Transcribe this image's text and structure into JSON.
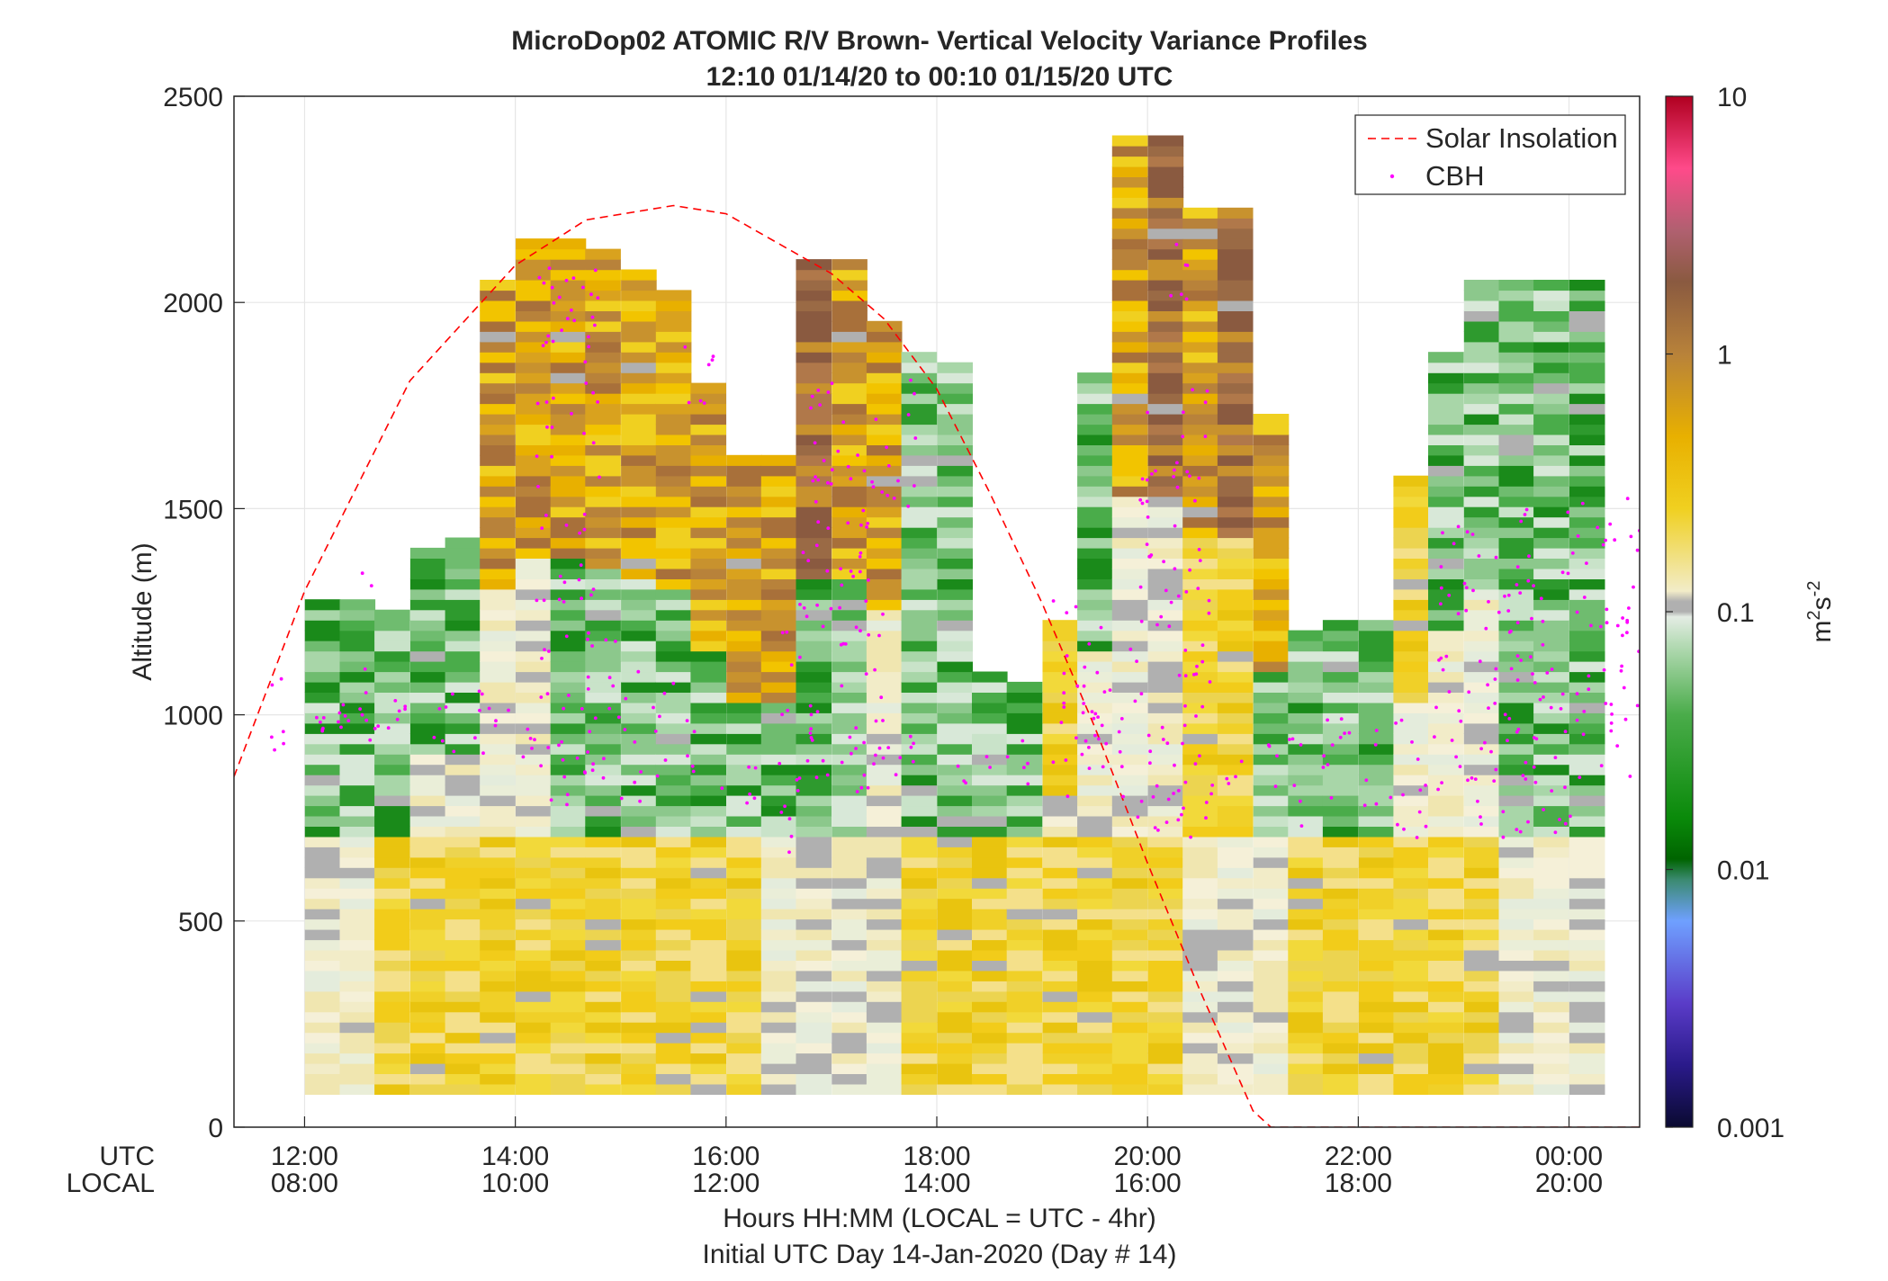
{
  "chart_data": {
    "type": "heatmap",
    "title": "MicroDop02 ATOMIC R/V Brown- Vertical Velocity Variance Profiles",
    "subtitle": "12:10 01/14/20 to 00:10 01/15/20  UTC",
    "ylabel": "Altitude (m)",
    "ylim": [
      0,
      2500
    ],
    "yticks": [
      "0",
      "500",
      "1000",
      "1500",
      "2000",
      "2500"
    ],
    "xlim_hours_utc": [
      11.33,
      24.67
    ],
    "xticks_utc": [
      "12:00",
      "14:00",
      "16:00",
      "18:00",
      "20:00",
      "22:00",
      "00:00"
    ],
    "xticks_local": [
      "08:00",
      "10:00",
      "12:00",
      "14:00",
      "16:00",
      "18:00",
      "20:00"
    ],
    "x_row_label_utc": "UTC",
    "x_row_label_local": "LOCAL",
    "xlabel": "Hours HH:MM  (LOCAL = UTC - 4hr)",
    "xlabel2": "Initial UTC Day 14-Jan-2020 (Day # 14)",
    "colorbar": {
      "label_base": "m",
      "label_sup1": "2",
      "label_mid": "s",
      "label_sup2": "-2",
      "scale": "log",
      "range": [
        0.001,
        10
      ],
      "ticks": [
        "0.001",
        "0.01",
        "0.1",
        "1",
        "10"
      ]
    },
    "legend": {
      "placement": "top-right",
      "entries": [
        "Solar Insolation",
        "CBH"
      ]
    },
    "colors": {
      "solar": "#ff0000",
      "cbh": "#ff00ff"
    },
    "profiles": [
      {
        "t": 12.17,
        "top": 1280,
        "low": "pale",
        "mid": "green",
        "up": "green"
      },
      {
        "t": 12.5,
        "top": 1280,
        "low": "pale",
        "mid": "green",
        "up": "green"
      },
      {
        "t": 12.83,
        "top": 1250,
        "low": "yellow",
        "mid": "green",
        "up": "green"
      },
      {
        "t": 13.17,
        "top": 1390,
        "low": "yellow",
        "mid": "pale",
        "up": "green"
      },
      {
        "t": 13.5,
        "top": 1410,
        "low": "yellow",
        "mid": "pale",
        "up": "green"
      },
      {
        "t": 13.83,
        "top": 2040,
        "low": "yellow",
        "mid": "pale",
        "up": "gold"
      },
      {
        "t": 14.17,
        "top": 2150,
        "low": "yellow",
        "mid": "pale",
        "up": "gold"
      },
      {
        "t": 14.5,
        "top": 2150,
        "low": "yellow",
        "mid": "green",
        "up": "gold"
      },
      {
        "t": 14.83,
        "top": 2130,
        "low": "yellow",
        "mid": "green",
        "up": "gold"
      },
      {
        "t": 15.17,
        "top": 2070,
        "low": "yellow",
        "mid": "green",
        "up": "gold"
      },
      {
        "t": 15.5,
        "top": 2030,
        "low": "yellow",
        "mid": "green",
        "up": "gold"
      },
      {
        "t": 15.83,
        "top": 1790,
        "low": "yellow",
        "mid": "green",
        "up": "gold"
      },
      {
        "t": 16.17,
        "top": 1610,
        "low": "yellow",
        "mid": "green",
        "up": "gold"
      },
      {
        "t": 16.5,
        "top": 1610,
        "low": "pale",
        "mid": "green",
        "up": "gold"
      },
      {
        "t": 16.83,
        "top": 2090,
        "low": "pale",
        "mid": "green",
        "up": "brown"
      },
      {
        "t": 17.17,
        "top": 2090,
        "low": "pale",
        "mid": "green",
        "up": "gold"
      },
      {
        "t": 17.5,
        "top": 1950,
        "low": "pale",
        "mid": "pale",
        "up": "gold"
      },
      {
        "t": 17.83,
        "top": 1880,
        "low": "yellow",
        "mid": "green",
        "up": "green"
      },
      {
        "t": 18.17,
        "top": 1850,
        "low": "yellow",
        "mid": "green",
        "up": "green"
      },
      {
        "t": 18.5,
        "top": 1090,
        "low": "yellow",
        "mid": "green",
        "up": "green"
      },
      {
        "t": 18.83,
        "top": 1080,
        "low": "yellow",
        "mid": "green",
        "up": "green"
      },
      {
        "t": 19.17,
        "top": 1210,
        "low": "yellow",
        "mid": "pale",
        "up": "yellow"
      },
      {
        "t": 19.5,
        "top": 1810,
        "low": "yellow",
        "mid": "pale",
        "up": "green"
      },
      {
        "t": 19.83,
        "top": 2390,
        "low": "yellow",
        "mid": "pale",
        "up": "gold"
      },
      {
        "t": 20.17,
        "top": 2390,
        "low": "yellow",
        "mid": "pale",
        "up": "brown"
      },
      {
        "t": 20.5,
        "top": 2220,
        "low": "pale",
        "mid": "yellow",
        "up": "gold"
      },
      {
        "t": 20.83,
        "top": 2220,
        "low": "pale",
        "mid": "yellow",
        "up": "brown"
      },
      {
        "t": 21.17,
        "top": 1720,
        "low": "pale",
        "mid": "green",
        "up": "gold"
      },
      {
        "t": 21.5,
        "top": 1190,
        "low": "yellow",
        "mid": "green",
        "up": "green"
      },
      {
        "t": 21.83,
        "top": 1210,
        "low": "yellow",
        "mid": "green",
        "up": "green"
      },
      {
        "t": 22.17,
        "top": 1210,
        "low": "yellow",
        "mid": "green",
        "up": "green"
      },
      {
        "t": 22.5,
        "top": 1580,
        "low": "yellow",
        "mid": "pale",
        "up": "yellow"
      },
      {
        "t": 22.83,
        "top": 1880,
        "low": "yellow",
        "mid": "pale",
        "up": "green"
      },
      {
        "t": 23.17,
        "top": 2050,
        "low": "yellow",
        "mid": "pale",
        "up": "green"
      },
      {
        "t": 23.5,
        "top": 2050,
        "low": "pale",
        "mid": "green",
        "up": "green"
      },
      {
        "t": 23.83,
        "top": 2050,
        "low": "pale",
        "mid": "green",
        "up": "green"
      },
      {
        "t": 24.17,
        "top": 2050,
        "low": "pale",
        "mid": "green",
        "up": "green"
      }
    ],
    "solar_insolation_curve": [
      {
        "x": 11.33,
        "y": 850
      },
      {
        "x": 12.0,
        "y": 1300
      },
      {
        "x": 13.0,
        "y": 1810
      },
      {
        "x": 14.0,
        "y": 2090
      },
      {
        "x": 14.67,
        "y": 2200
      },
      {
        "x": 15.5,
        "y": 2235
      },
      {
        "x": 16.0,
        "y": 2215
      },
      {
        "x": 17.0,
        "y": 2070
      },
      {
        "x": 17.5,
        "y": 1960
      },
      {
        "x": 18.0,
        "y": 1790
      },
      {
        "x": 18.5,
        "y": 1540
      },
      {
        "x": 19.0,
        "y": 1270
      },
      {
        "x": 19.5,
        "y": 970
      },
      {
        "x": 20.0,
        "y": 640
      },
      {
        "x": 20.5,
        "y": 330
      },
      {
        "x": 21.0,
        "y": 40
      },
      {
        "x": 21.17,
        "y": 0
      },
      {
        "x": 24.67,
        "y": 0
      }
    ],
    "cbh_clusters": [
      {
        "x0": 11.67,
        "x1": 11.83,
        "ymin": 900,
        "ymax": 1100
      },
      {
        "x0": 12.1,
        "x1": 12.2,
        "ymin": 960,
        "ymax": 1000
      },
      {
        "x0": 12.3,
        "x1": 12.45,
        "ymin": 960,
        "ymax": 1030
      },
      {
        "x0": 12.5,
        "x1": 12.7,
        "ymin": 930,
        "ymax": 1360
      },
      {
        "x0": 12.75,
        "x1": 13.0,
        "ymin": 950,
        "ymax": 1040
      },
      {
        "x0": 13.2,
        "x1": 13.9,
        "ymin": 880,
        "ymax": 1060
      },
      {
        "x0": 13.9,
        "x1": 14.2,
        "ymin": 860,
        "ymax": 1050
      },
      {
        "x0": 14.2,
        "x1": 15.2,
        "ymin": 780,
        "ymax": 1200
      },
      {
        "x0": 14.2,
        "x1": 14.8,
        "ymin": 1250,
        "ymax": 2100
      },
      {
        "x0": 15.3,
        "x1": 15.7,
        "ymin": 830,
        "ymax": 1100
      },
      {
        "x0": 15.6,
        "x1": 15.9,
        "ymin": 1700,
        "ymax": 1920
      },
      {
        "x0": 15.9,
        "x1": 16.3,
        "ymin": 770,
        "ymax": 900
      },
      {
        "x0": 16.5,
        "x1": 16.7,
        "ymin": 650,
        "ymax": 1300
      },
      {
        "x0": 16.7,
        "x1": 17.5,
        "ymin": 800,
        "ymax": 1500
      },
      {
        "x0": 16.8,
        "x1": 17.8,
        "ymin": 1500,
        "ymax": 1820
      },
      {
        "x0": 17.2,
        "x1": 17.6,
        "ymin": 850,
        "ymax": 950
      },
      {
        "x0": 17.6,
        "x1": 18.0,
        "ymin": 850,
        "ymax": 950
      },
      {
        "x0": 18.2,
        "x1": 18.9,
        "ymin": 830,
        "ymax": 960
      },
      {
        "x0": 19.1,
        "x1": 19.9,
        "ymin": 800,
        "ymax": 1300
      },
      {
        "x0": 19.9,
        "x1": 20.6,
        "ymin": 700,
        "ymax": 1800
      },
      {
        "x0": 20.2,
        "x1": 20.4,
        "ymin": 2000,
        "ymax": 2180
      },
      {
        "x0": 20.6,
        "x1": 21.0,
        "ymin": 780,
        "ymax": 900
      },
      {
        "x0": 21.1,
        "x1": 21.5,
        "ymin": 720,
        "ymax": 950
      },
      {
        "x0": 21.6,
        "x1": 22.2,
        "ymin": 780,
        "ymax": 1000
      },
      {
        "x0": 22.3,
        "x1": 22.7,
        "ymin": 700,
        "ymax": 1000
      },
      {
        "x0": 22.7,
        "x1": 23.1,
        "ymin": 800,
        "ymax": 1500
      },
      {
        "x0": 23.1,
        "x1": 23.5,
        "ymin": 700,
        "ymax": 1400
      },
      {
        "x0": 23.5,
        "x1": 24.1,
        "ymin": 700,
        "ymax": 1550
      },
      {
        "x0": 24.1,
        "x1": 24.67,
        "ymin": 850,
        "ymax": 1530
      }
    ]
  }
}
